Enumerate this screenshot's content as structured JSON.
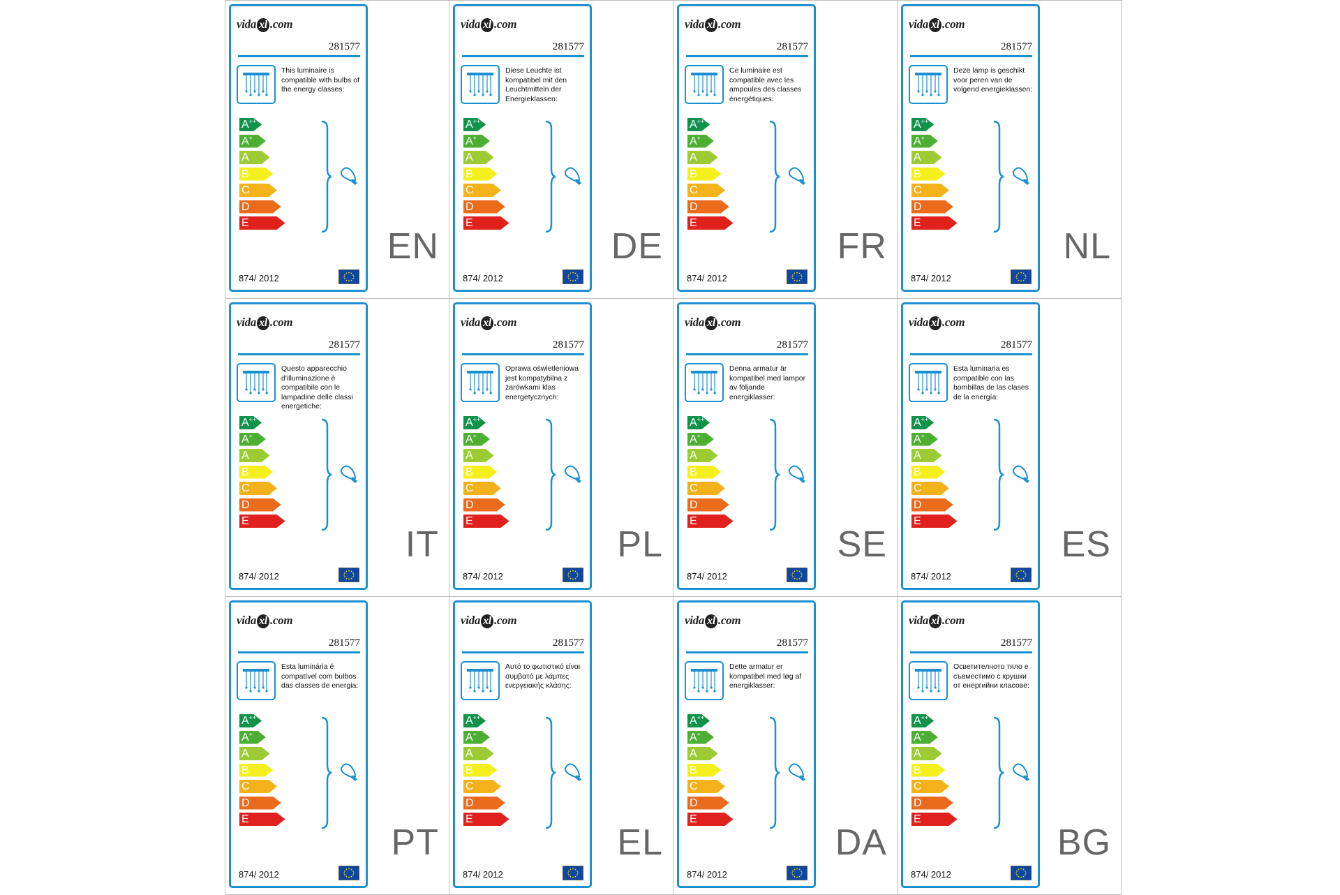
{
  "brand": {
    "logo_pre": "vida",
    "logo_xl": "xl",
    "logo_post": ".com"
  },
  "product_code": "281577",
  "regulation": "874/ 2012",
  "energy_classes": [
    {
      "letter": "A",
      "sup": "++",
      "color": "#11924a"
    },
    {
      "letter": "A",
      "sup": "+",
      "color": "#4caf32"
    },
    {
      "letter": "A",
      "sup": "",
      "color": "#9ccb34"
    },
    {
      "letter": "B",
      "sup": "",
      "color": "#f5ef1c"
    },
    {
      "letter": "C",
      "sup": "",
      "color": "#f4b21a"
    },
    {
      "letter": "D",
      "sup": "",
      "color": "#ea6b1c"
    },
    {
      "letter": "E",
      "sup": "",
      "color": "#e0211d"
    }
  ],
  "colors": {
    "accent": "#1a8fd1",
    "grid_line": "#bdbdbd",
    "eu_flag_blue": "#0e47a1",
    "eu_flag_stars": "#ffdd00"
  },
  "icons": {
    "luminaire": "ceiling-luminaire-icon",
    "bulb": "light-bulb-icon",
    "eu_flag": "eu-flag-icon"
  },
  "labels": [
    {
      "lang": "EN",
      "text": "This luminaire is compatible with bulbs of the energy classes:"
    },
    {
      "lang": "DE",
      "text": "Diese Leuchte ist kompatibel mit den Leuchtmitteln der Energieklassen:"
    },
    {
      "lang": "FR",
      "text": "Ce luminaire est compatible avec les ampoules des classes énergétiques:"
    },
    {
      "lang": "NL",
      "text": "Deze lamp is geschikt voor peren van de volgend energieklassen:"
    },
    {
      "lang": "IT",
      "text": "Questo apparecchio d'illuminazione è compatibile con le lampadine delle classi energetiche:"
    },
    {
      "lang": "PL",
      "text": "Oprawa oświetleniowa jest kompatybilna z żarówkami klas energetycznych:"
    },
    {
      "lang": "SE",
      "text": "Denna armatur är kompatibel med lampor av följande energiklasser:"
    },
    {
      "lang": "ES",
      "text": "Esta luminaria es compatible con las bombillas de las clases de la energía:"
    },
    {
      "lang": "PT",
      "text": "Esta luminária é compatível com bulbos das classes de energia:"
    },
    {
      "lang": "EL",
      "text": "Αυτό το φωτιστικό είναι συμβατό με λάμπες ενεργειακής κλάσης:"
    },
    {
      "lang": "DA",
      "text": "Dette armatur er kompatibel med løg af energiklasser:"
    },
    {
      "lang": "BG",
      "text": "Осветителното тяло е съвместимо с крушки от енергийни класове:"
    }
  ]
}
